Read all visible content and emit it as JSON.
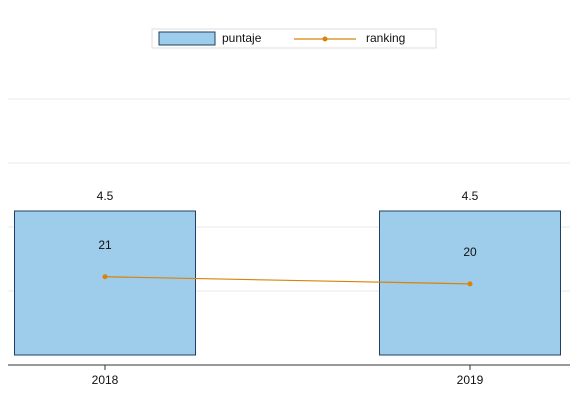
{
  "chart_data": {
    "type": "bar_line",
    "categories": [
      "2018",
      "2019"
    ],
    "series": [
      {
        "name": "puntaje",
        "type": "bar",
        "color": "#9dcdeb",
        "values": [
          4.5,
          4.5
        ]
      },
      {
        "name": "ranking",
        "type": "line",
        "color": "#d9820c",
        "axis": "y2",
        "values": [
          21,
          20
        ]
      }
    ],
    "ylim": [
      0,
      10
    ],
    "yticks": [
      2,
      4,
      6,
      8
    ],
    "y2lim": [
      10,
      55
    ],
    "grid": true,
    "legend": "top"
  }
}
